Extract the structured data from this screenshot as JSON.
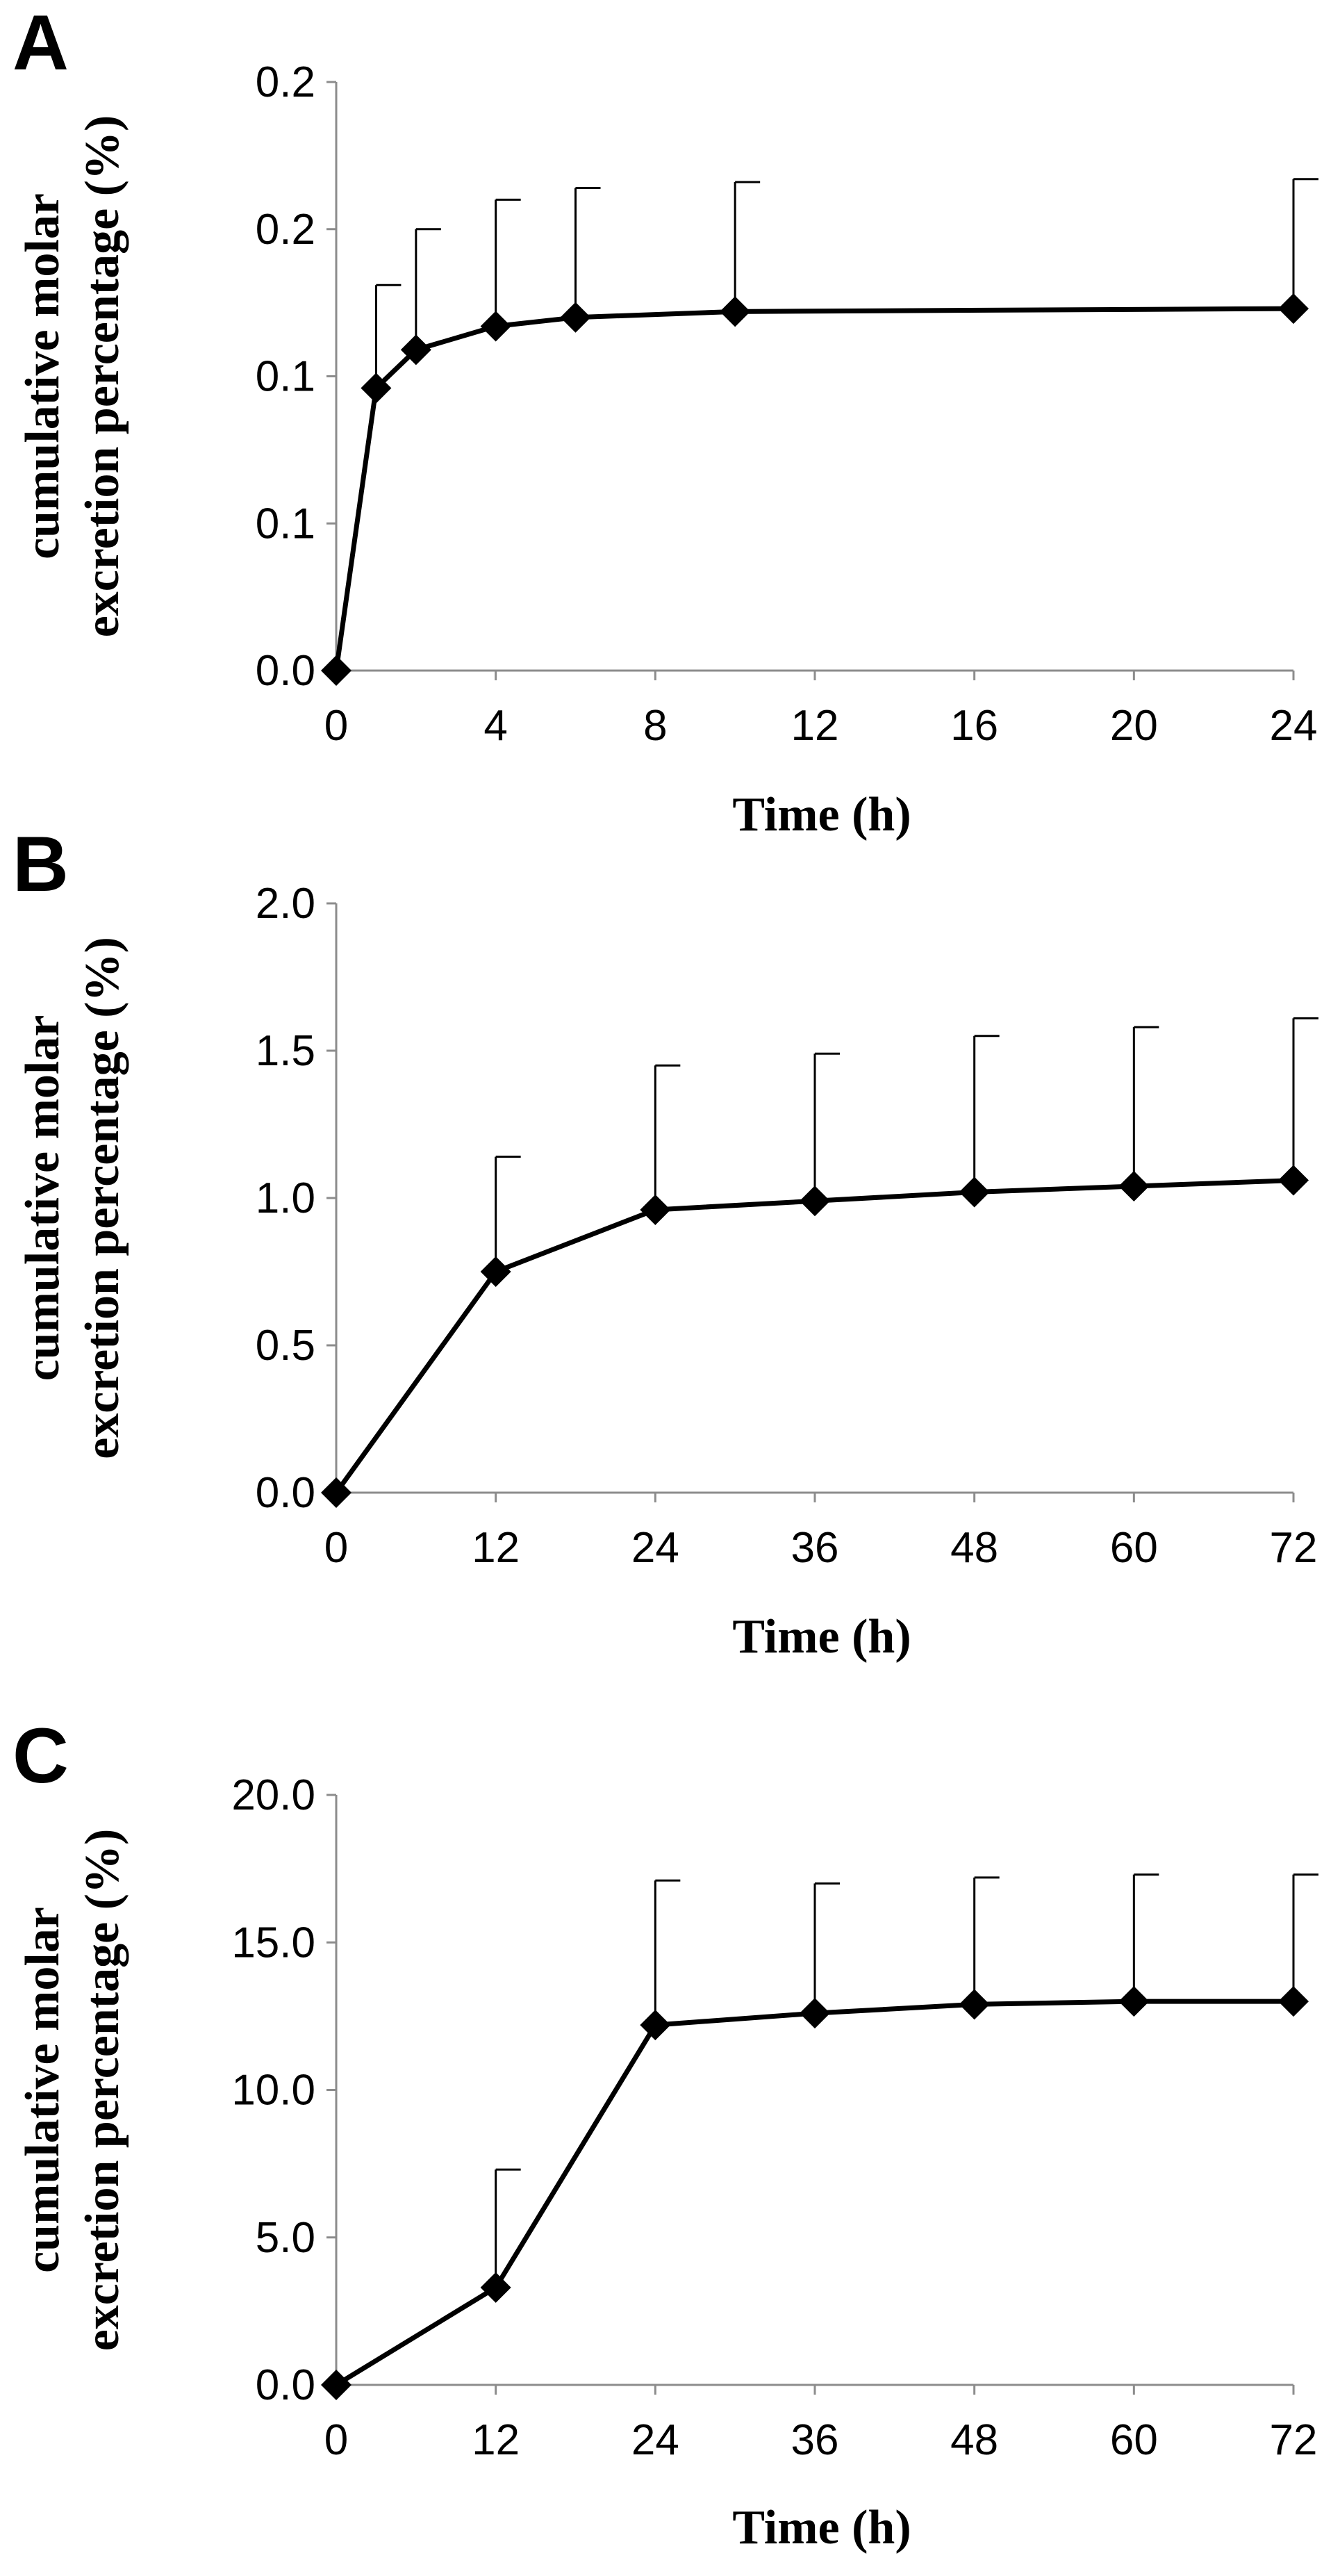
{
  "chart_data": [
    {
      "type": "line",
      "panel_label": "A",
      "xlabel": "Time (h)",
      "ylabel": [
        "cumulative molar",
        "excretion percentage (%)"
      ],
      "x_ticks": [
        0,
        4,
        8,
        12,
        16,
        20,
        24
      ],
      "xlim": [
        0,
        24
      ],
      "y_tick_labels": [
        "0.0",
        "0.1",
        "0.1",
        "0.2",
        "0.2"
      ],
      "ylim": [
        0,
        0.2
      ],
      "grid": false,
      "x": [
        0,
        1,
        2,
        4,
        6,
        10,
        24
      ],
      "values": [
        0,
        0.096,
        0.109,
        0.117,
        0.12,
        0.122,
        0.123
      ],
      "error_upper": [
        0,
        0.131,
        0.15,
        0.16,
        0.164,
        0.166,
        0.167
      ],
      "marker": "diamond",
      "color": "#000000"
    },
    {
      "type": "line",
      "panel_label": "B",
      "xlabel": "Time (h)",
      "ylabel": [
        "cumulative molar",
        "excretion percentage (%)"
      ],
      "x_ticks": [
        0,
        12,
        24,
        36,
        48,
        60,
        72
      ],
      "xlim": [
        0,
        72
      ],
      "y_tick_labels": [
        "0.0",
        "0.5",
        "1.0",
        "1.5",
        "2.0"
      ],
      "ylim": [
        0,
        2.0
      ],
      "grid": false,
      "x": [
        0,
        12,
        24,
        36,
        48,
        60,
        72
      ],
      "values": [
        0,
        0.75,
        0.96,
        0.99,
        1.02,
        1.04,
        1.06
      ],
      "error_upper": [
        0,
        1.14,
        1.45,
        1.49,
        1.55,
        1.58,
        1.61
      ],
      "marker": "diamond",
      "color": "#000000"
    },
    {
      "type": "line",
      "panel_label": "C",
      "xlabel": "Time (h)",
      "ylabel": [
        "cumulative molar",
        "excretion percentage (%)"
      ],
      "x_ticks": [
        0,
        12,
        24,
        36,
        48,
        60,
        72
      ],
      "xlim": [
        0,
        72
      ],
      "y_tick_labels": [
        "0.0",
        "5.0",
        "10.0",
        "15.0",
        "20.0"
      ],
      "ylim": [
        0,
        20.0
      ],
      "grid": false,
      "x": [
        0,
        12,
        24,
        36,
        48,
        60,
        72
      ],
      "values": [
        0,
        3.3,
        12.2,
        12.6,
        12.9,
        13.0,
        13.0
      ],
      "error_upper": [
        0,
        7.3,
        17.1,
        17.0,
        17.2,
        17.3,
        17.3
      ],
      "marker": "diamond",
      "color": "#000000"
    }
  ]
}
